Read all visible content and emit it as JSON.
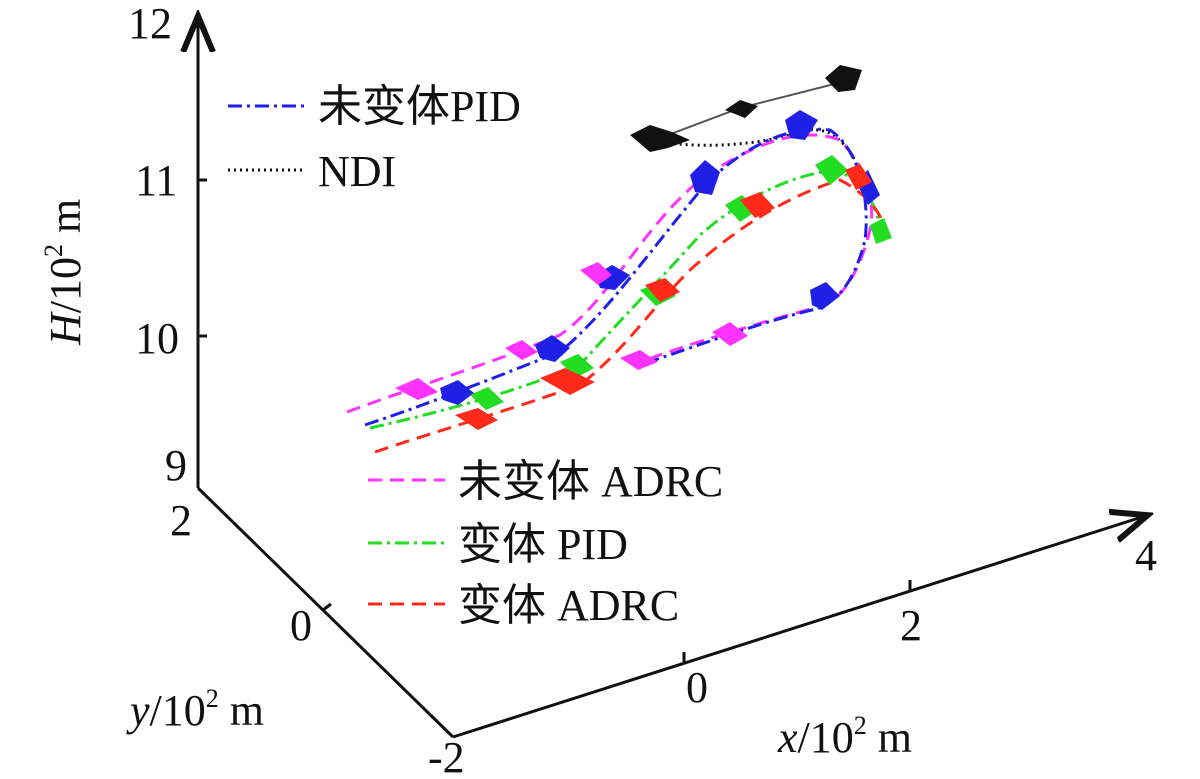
{
  "chart_data": {
    "type": "line-3d",
    "axes": {
      "x": {
        "label_var": "x",
        "label_unit": "10",
        "label_exp": "2",
        "label_tail": "m",
        "ticks": [
          "0",
          "2",
          "4"
        ],
        "range": [
          -1,
          4
        ]
      },
      "y": {
        "label_var": "y",
        "label_unit": "10",
        "label_exp": "2",
        "label_tail": "m",
        "ticks": [
          "2",
          "0",
          "-2"
        ],
        "range": [
          -2,
          2
        ]
      },
      "z": {
        "label_var": "H",
        "label_unit": "10",
        "label_exp": "2",
        "label_tail": "m",
        "ticks": [
          "9",
          "10",
          "11",
          "12"
        ],
        "range": [
          9,
          12
        ]
      }
    },
    "legend": {
      "top_left": [
        "未变体PID",
        "NDI"
      ],
      "bottom": [
        "未变体 ADRC",
        "变体 PID",
        "变体 ADRC"
      ]
    },
    "series": [
      {
        "name": "未变体PID",
        "color": "#1f1fe6",
        "dash": "dashdot"
      },
      {
        "name": "NDI",
        "color": "#111111",
        "dash": "dotted"
      },
      {
        "name": "未变体 ADRC",
        "color": "#ff33ff",
        "dash": "dashed"
      },
      {
        "name": "变体 PID",
        "color": "#22dd22",
        "dash": "dashdot"
      },
      {
        "name": "变体 ADRC",
        "color": "#ff2a1a",
        "dash": "dashed"
      }
    ]
  }
}
